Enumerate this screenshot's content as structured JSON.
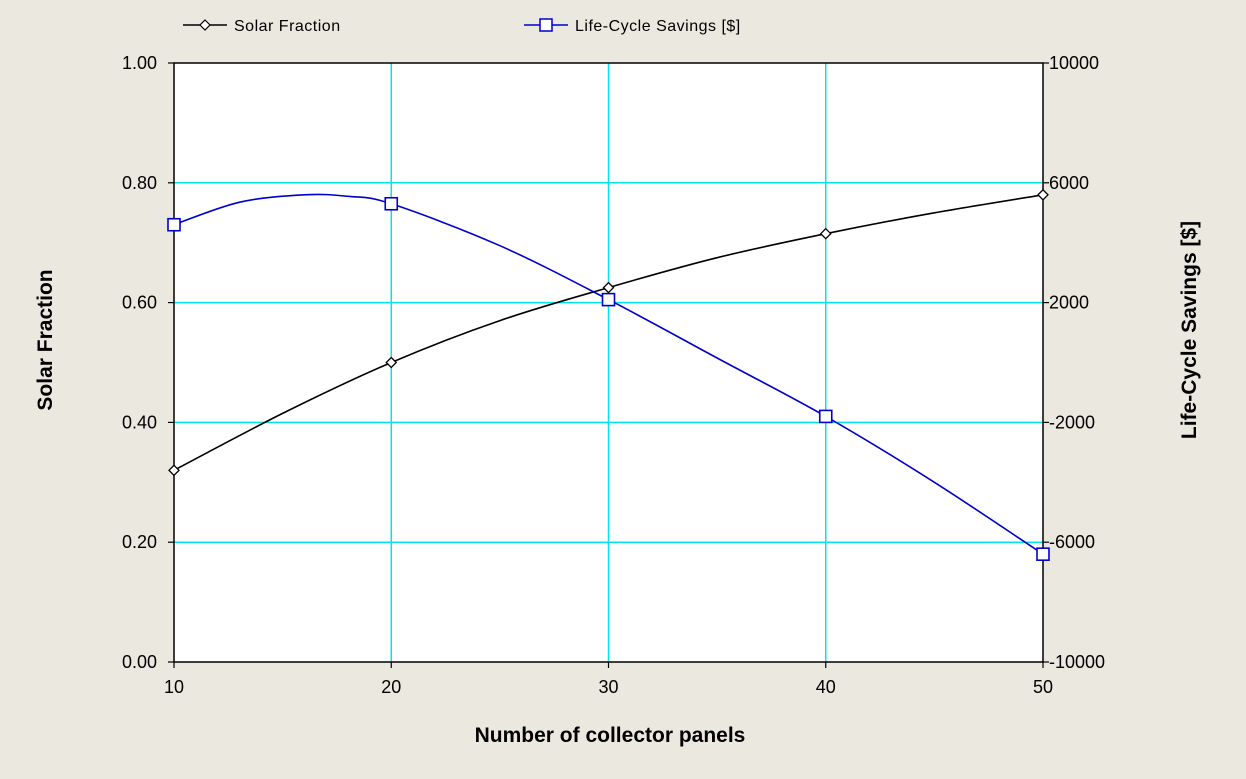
{
  "chart_data": {
    "type": "line",
    "xlabel": "Number of collector panels",
    "ylabel": "Solar Fraction",
    "y2label": "Life-Cycle Savings [$]",
    "xlim": [
      10,
      50
    ],
    "ylim": [
      0,
      1
    ],
    "y2lim": [
      -10000,
      10000
    ],
    "x_ticks": [
      "10",
      "20",
      "30",
      "40",
      "50"
    ],
    "y_ticks": [
      "0.00",
      "0.20",
      "0.40",
      "0.60",
      "0.80",
      "1.00"
    ],
    "y2_ticks": [
      "-10000",
      "-6000",
      "-2000",
      "2000",
      "6000",
      "10000"
    ],
    "grid": true,
    "legend_position": "top",
    "series": [
      {
        "name": "Solar Fraction",
        "axis": "left",
        "marker": "diamond",
        "color": "#000000",
        "x": [
          10,
          20,
          30,
          40,
          50
        ],
        "values": [
          0.32,
          0.5,
          0.625,
          0.715,
          0.78
        ]
      },
      {
        "name": "Life-Cycle Savings [$]",
        "axis": "right",
        "marker": "square",
        "color": "#0000cc",
        "x": [
          10,
          20,
          30,
          40,
          50
        ],
        "values": [
          4600,
          5300,
          2100,
          -1800,
          -6400
        ]
      }
    ],
    "curve_samples": [
      {
        "series": 0,
        "x": [
          10,
          15,
          20,
          25,
          30,
          35,
          40,
          45,
          50
        ],
        "y": [
          0.32,
          0.415,
          0.5,
          0.57,
          0.625,
          0.675,
          0.715,
          0.75,
          0.78
        ]
      },
      {
        "series": 1,
        "x": [
          10,
          13,
          16,
          18,
          20,
          25,
          30,
          35,
          40,
          45,
          50
        ],
        "y": [
          4600,
          5350,
          5600,
          5550,
          5300,
          3900,
          2100,
          150,
          -1800,
          -4000,
          -6400
        ]
      }
    ],
    "colors": {
      "grid": "#00e5ee",
      "background": "#ebe9df",
      "plot": "#ffffff"
    }
  }
}
